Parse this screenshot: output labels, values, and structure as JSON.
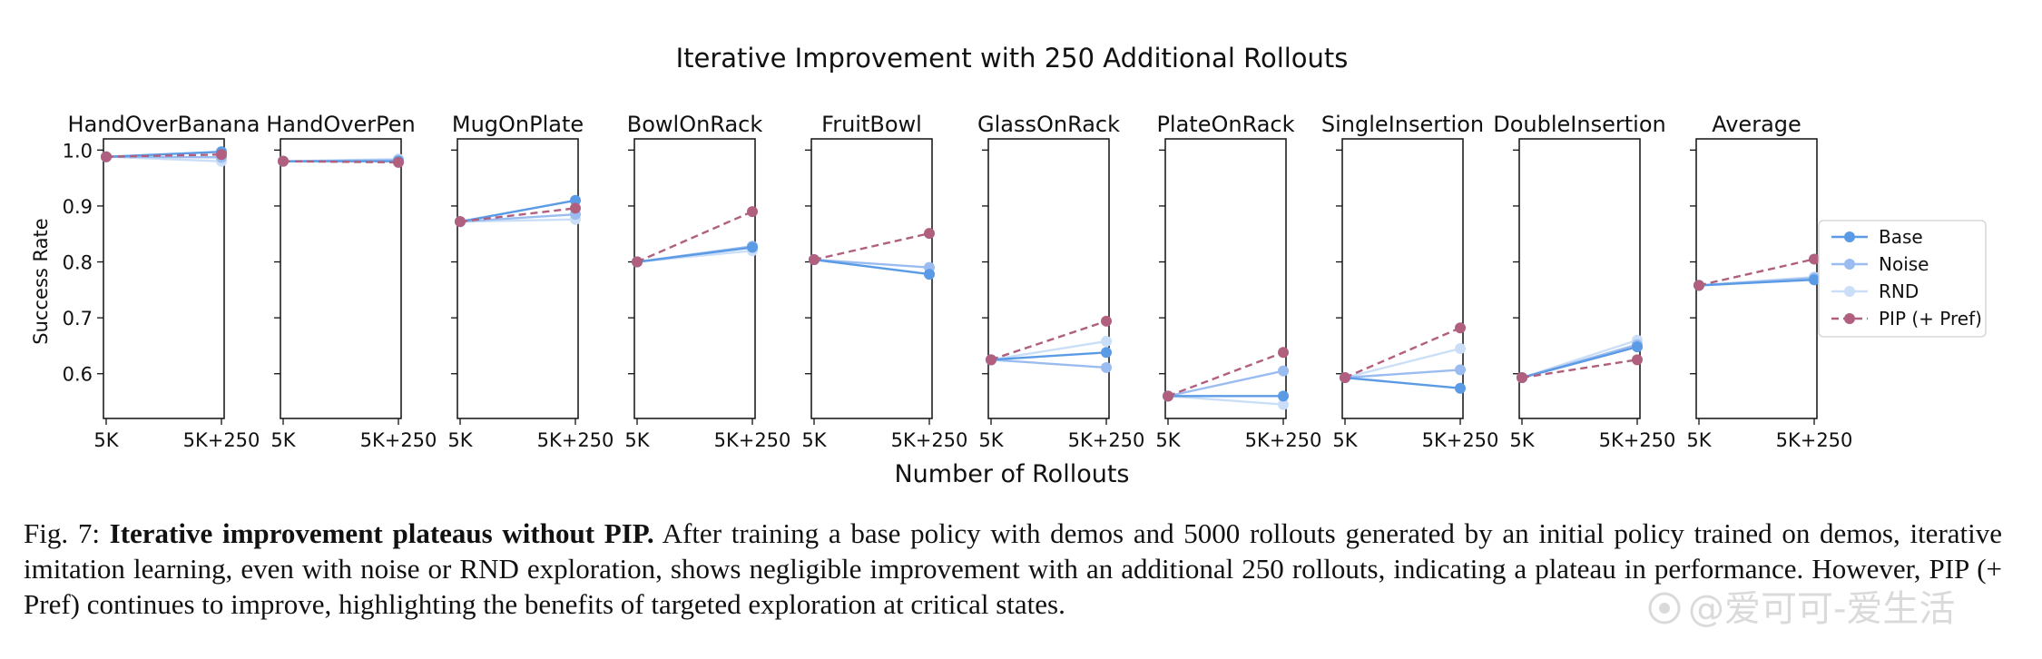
{
  "chart_data": {
    "type": "line",
    "title": "Iterative Improvement with 250 Additional Rollouts",
    "xlabel": "Number of Rollouts",
    "ylabel": "Success Rate",
    "x": [
      "5K",
      "5K+250"
    ],
    "ylim": [
      0.52,
      1.02
    ],
    "yticks": [
      "1.0",
      "0.9",
      "0.8",
      "0.7",
      "0.6"
    ],
    "ytick_values": [
      1.0,
      0.9,
      0.8,
      0.7,
      0.6
    ],
    "grid": false,
    "legend_position": "right",
    "legend": [
      {
        "name": "Base",
        "color": "#5b9be6",
        "style": "solid"
      },
      {
        "name": "Noise",
        "color": "#9bbcf0",
        "style": "solid"
      },
      {
        "name": "RND",
        "color": "#cadff7",
        "style": "solid"
      },
      {
        "name": "PIP (+ Pref)",
        "color": "#b0607e",
        "style": "dashed"
      }
    ],
    "subplots": [
      {
        "title": "HandOverBanana",
        "series": {
          "Base": [
            0.988,
            0.997
          ],
          "Noise": [
            0.988,
            0.987
          ],
          "RND": [
            0.988,
            0.98
          ],
          "PIP (+ Pref)": [
            0.988,
            0.992
          ]
        }
      },
      {
        "title": "HandOverPen",
        "series": {
          "Base": [
            0.98,
            0.98
          ],
          "Noise": [
            0.98,
            0.982
          ],
          "RND": [
            0.98,
            0.984
          ],
          "PIP (+ Pref)": [
            0.98,
            0.978
          ]
        }
      },
      {
        "title": "MugOnPlate",
        "series": {
          "Base": [
            0.872,
            0.91
          ],
          "Noise": [
            0.872,
            0.885
          ],
          "RND": [
            0.872,
            0.876
          ],
          "PIP (+ Pref)": [
            0.872,
            0.896
          ]
        }
      },
      {
        "title": "BowlOnRack",
        "series": {
          "Base": [
            0.8,
            0.826
          ],
          "Noise": [
            0.8,
            0.828
          ],
          "RND": [
            0.8,
            0.82
          ],
          "PIP (+ Pref)": [
            0.8,
            0.89
          ]
        }
      },
      {
        "title": "FruitBowl",
        "series": {
          "Base": [
            0.804,
            0.778
          ],
          "Noise": [
            0.804,
            0.79
          ],
          "RND": [
            0.804,
            0.778
          ],
          "PIP (+ Pref)": [
            0.804,
            0.851
          ]
        }
      },
      {
        "title": "GlassOnRack",
        "series": {
          "Base": [
            0.625,
            0.638
          ],
          "Noise": [
            0.625,
            0.611
          ],
          "RND": [
            0.625,
            0.658
          ],
          "PIP (+ Pref)": [
            0.625,
            0.694
          ]
        }
      },
      {
        "title": "PlateOnRack",
        "series": {
          "Base": [
            0.56,
            0.56
          ],
          "Noise": [
            0.56,
            0.605
          ],
          "RND": [
            0.56,
            0.545
          ],
          "PIP (+ Pref)": [
            0.56,
            0.638
          ]
        }
      },
      {
        "title": "SingleInsertion",
        "series": {
          "Base": [
            0.593,
            0.574
          ],
          "Noise": [
            0.593,
            0.607
          ],
          "RND": [
            0.593,
            0.645
          ],
          "PIP (+ Pref)": [
            0.593,
            0.682
          ]
        }
      },
      {
        "title": "DoubleInsertion",
        "series": {
          "Base": [
            0.593,
            0.648
          ],
          "Noise": [
            0.593,
            0.652
          ],
          "RND": [
            0.593,
            0.66
          ],
          "PIP (+ Pref)": [
            0.593,
            0.625
          ]
        }
      },
      {
        "title": "Average",
        "series": {
          "Base": [
            0.758,
            0.768
          ],
          "Noise": [
            0.758,
            0.771
          ],
          "RND": [
            0.758,
            0.773
          ],
          "PIP (+ Pref)": [
            0.758,
            0.805
          ]
        }
      }
    ]
  },
  "caption": {
    "label": "Fig. 7: ",
    "bold": "Iterative improvement plateaus without PIP.",
    "text": " After training a base policy with demos and 5000 rollouts generated by an initial policy trained on demos, iterative imitation learning, even with noise or RND exploration, shows negligible improvement with an additional 250 rollouts, indicating a plateau in performance. However, PIP (+ Pref) continues to improve, highlighting the benefits of targeted exploration at critical states."
  },
  "watermark": {
    "text": "@爱可可-爱生活"
  }
}
